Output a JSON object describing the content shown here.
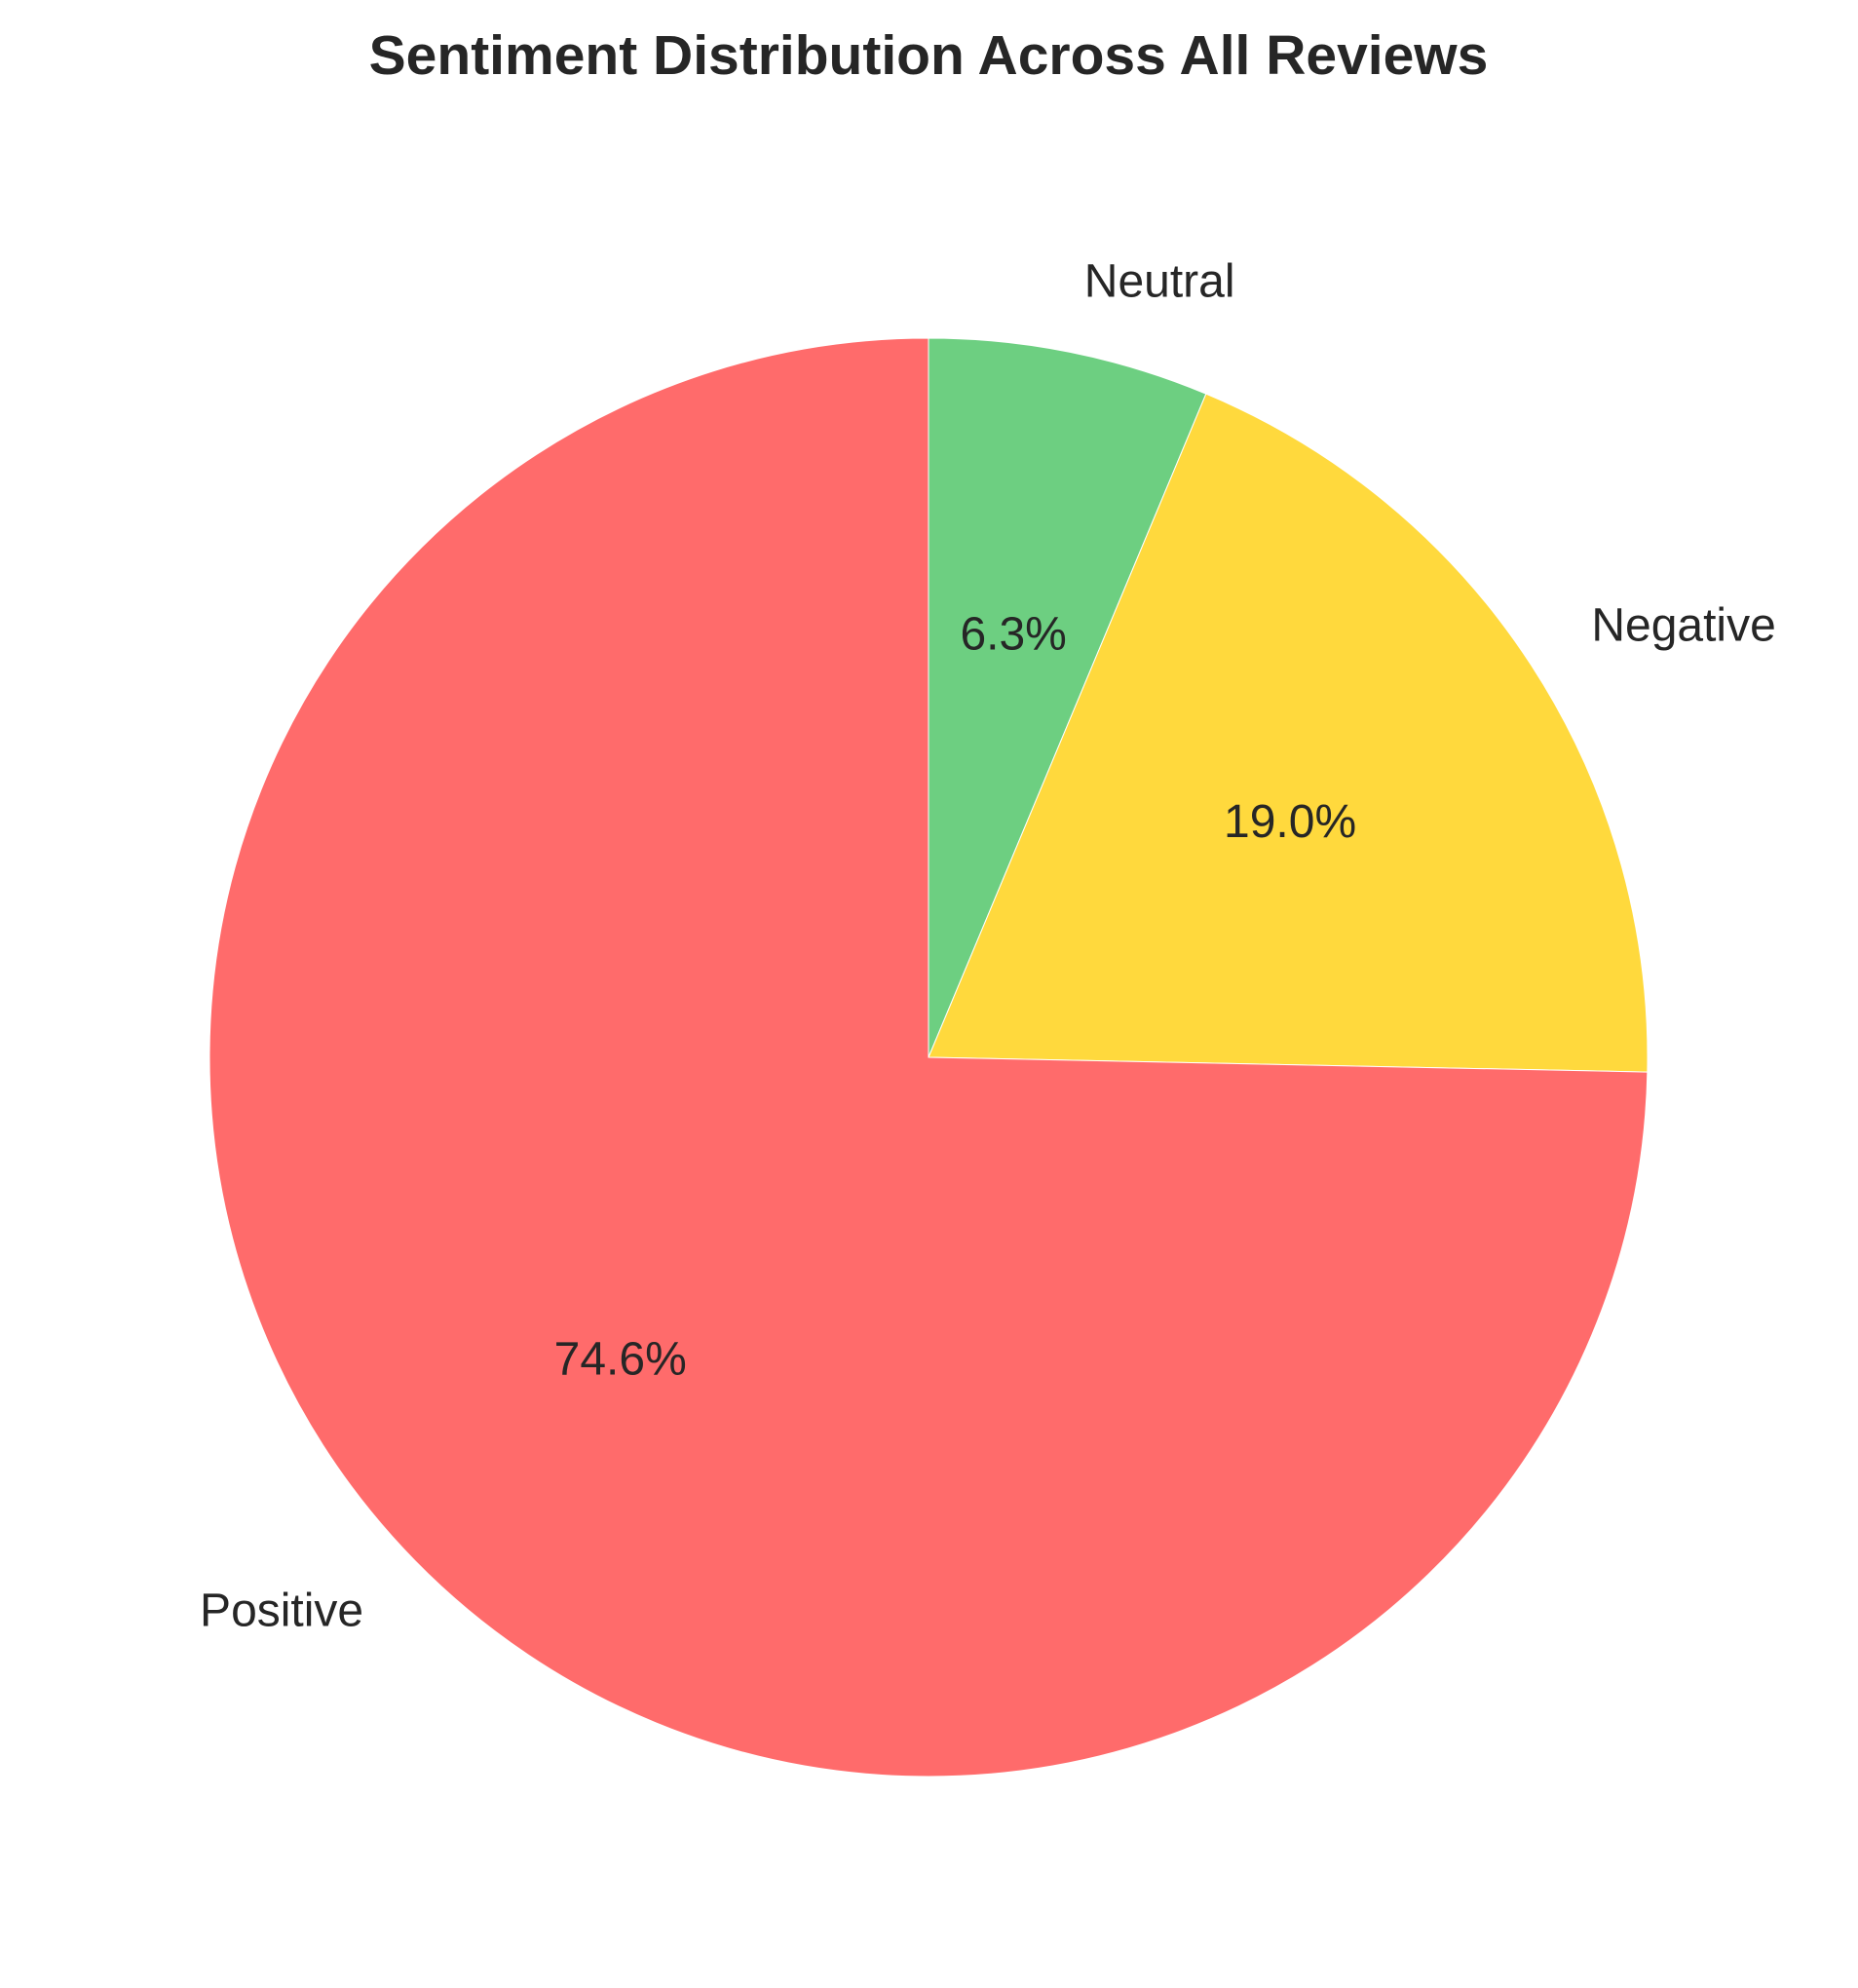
{
  "chart_data": {
    "type": "pie",
    "title": "Sentiment Distribution Across All Reviews",
    "start_angle_deg": 90,
    "direction": "clockwise",
    "slices": [
      {
        "label": "Neutral",
        "value": 6.3,
        "pct_label": "6.3%",
        "color": "#6dcf81"
      },
      {
        "label": "Negative",
        "value": 19.0,
        "pct_label": "19.0%",
        "color": "#ffd93d"
      },
      {
        "label": "Positive",
        "value": 74.6,
        "pct_label": "74.6%",
        "color": "#ff6b6b"
      }
    ]
  }
}
